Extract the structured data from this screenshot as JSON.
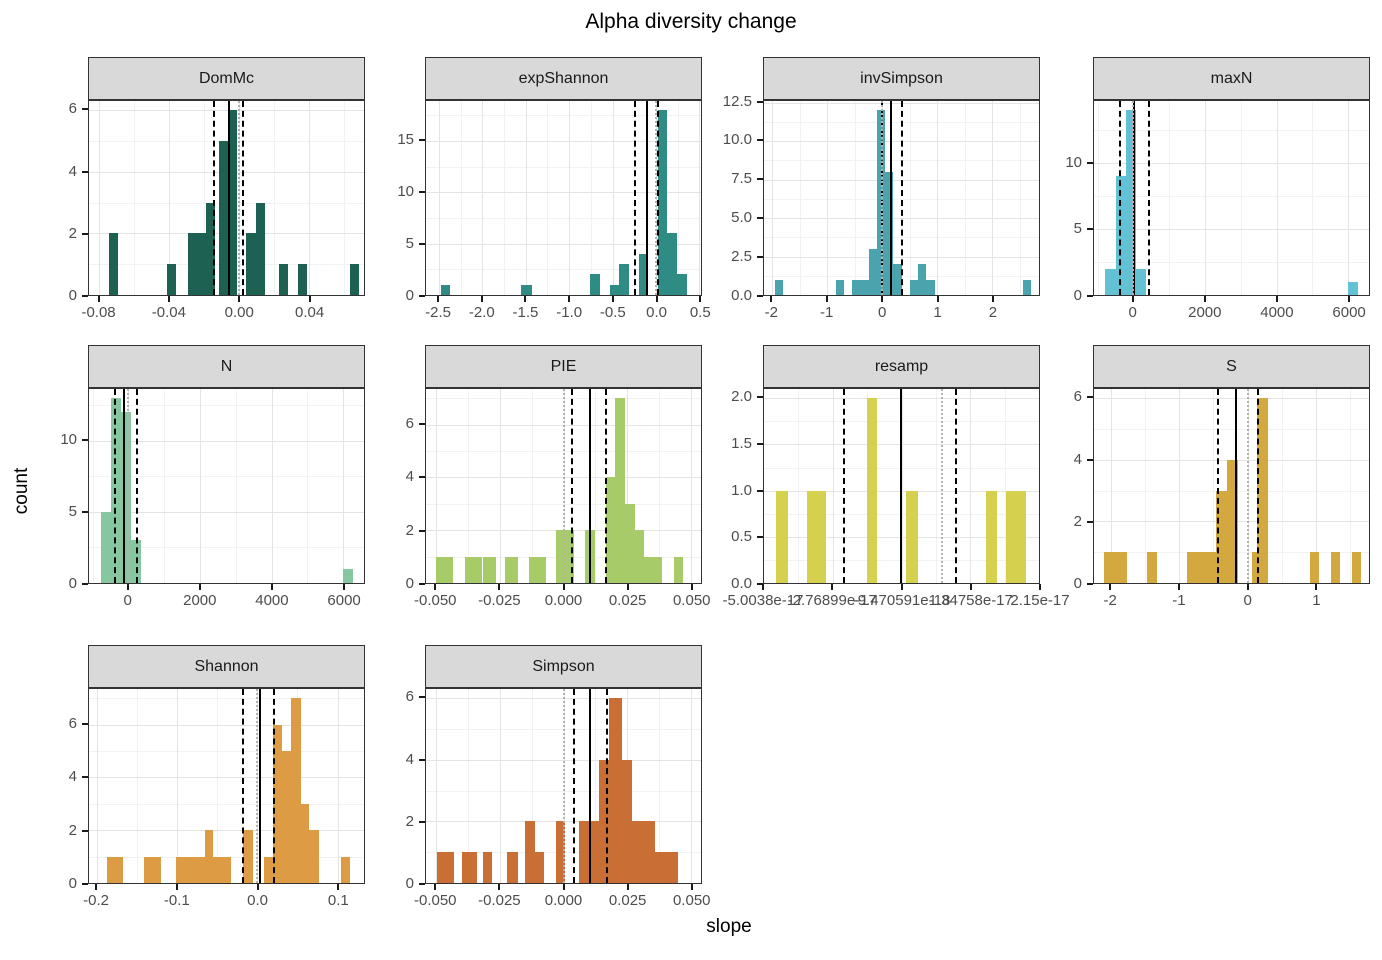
{
  "title": "Alpha diversity change",
  "x_axis_label": "slope",
  "y_axis_label": "count",
  "styles": {
    "strip_bg": "#d9d9d9",
    "panel_bg": "#ffffff",
    "grid_major": "#e4e4e4",
    "grid_minor": "#f2f2f2",
    "mean_line": "#000000",
    "ci_line": "#000000",
    "zero_ref_line": "#b3b3b3",
    "tick_text": "#4d4d4d"
  },
  "chart_data": [
    {
      "type": "bar",
      "facet": "DomMc",
      "color": "#1d6152",
      "row": 1,
      "col": 1,
      "xlim": [
        -0.086,
        0.0715
      ],
      "ylim": [
        0,
        6.3
      ],
      "xticks": [
        {
          "v": -0.08,
          "t": "-0.08"
        },
        {
          "v": -0.04,
          "t": "-0.04"
        },
        {
          "v": 0.0,
          "t": "0.00"
        },
        {
          "v": 0.04,
          "t": "0.04"
        }
      ],
      "yticks": [
        {
          "v": 0,
          "t": "0"
        },
        {
          "v": 2,
          "t": "2"
        },
        {
          "v": 4,
          "t": "4"
        },
        {
          "v": 6,
          "t": "6"
        }
      ],
      "bars": [
        {
          "x0": -0.0746,
          "x1": -0.0694,
          "n": 2
        },
        {
          "x0": -0.0412,
          "x1": -0.036,
          "n": 1
        },
        {
          "x0": -0.0292,
          "x1": -0.024,
          "n": 2
        },
        {
          "x0": -0.024,
          "x1": -0.0188,
          "n": 2
        },
        {
          "x0": -0.0188,
          "x1": -0.0136,
          "n": 3
        },
        {
          "x0": -0.0115,
          "x1": -0.0063,
          "n": 5
        },
        {
          "x0": -0.0063,
          "x1": -0.001,
          "n": 6
        },
        {
          "x0": 0.0042,
          "x1": 0.0095,
          "n": 2
        },
        {
          "x0": 0.0095,
          "x1": 0.0147,
          "n": 3
        },
        {
          "x0": 0.023,
          "x1": 0.0282,
          "n": 1
        },
        {
          "x0": 0.0339,
          "x1": 0.0391,
          "n": 1
        },
        {
          "x0": 0.0632,
          "x1": 0.0684,
          "n": 1
        }
      ],
      "vlines": {
        "solid": -0.006,
        "dashed": [
          -0.0144,
          0.0023
        ],
        "dotted": 0
      }
    },
    {
      "type": "bar",
      "facet": "expShannon",
      "color": "#2e8c85",
      "row": 1,
      "col": 2,
      "xlim": [
        -2.65,
        0.52
      ],
      "ylim": [
        0,
        18.9
      ],
      "xticks": [
        {
          "v": -2.5,
          "t": "-2.5"
        },
        {
          "v": -2.0,
          "t": "-2.0"
        },
        {
          "v": -1.5,
          "t": "-1.5"
        },
        {
          "v": -1.0,
          "t": "-1.0"
        },
        {
          "v": -0.5,
          "t": "-0.5"
        },
        {
          "v": 0.0,
          "t": "0.0"
        },
        {
          "v": 0.5,
          "t": "0.5"
        }
      ],
      "yticks": [
        {
          "v": 0,
          "t": "0"
        },
        {
          "v": 5,
          "t": "5"
        },
        {
          "v": 10,
          "t": "10"
        },
        {
          "v": 15,
          "t": "15"
        }
      ],
      "bars": [
        {
          "x0": -2.48,
          "x1": -2.37,
          "n": 1
        },
        {
          "x0": -1.55,
          "x1": -1.43,
          "n": 1
        },
        {
          "x0": -0.76,
          "x1": -0.64,
          "n": 2
        },
        {
          "x0": -0.53,
          "x1": -0.42,
          "n": 1
        },
        {
          "x0": -0.42,
          "x1": -0.31,
          "n": 3
        },
        {
          "x0": -0.2,
          "x1": -0.09,
          "n": 4
        },
        {
          "x0": 0.02,
          "x1": 0.13,
          "n": 18
        },
        {
          "x0": 0.13,
          "x1": 0.245,
          "n": 6
        },
        {
          "x0": 0.245,
          "x1": 0.36,
          "n": 2
        }
      ],
      "vlines": {
        "solid": -0.106,
        "dashed": [
          -0.237,
          0.03
        ],
        "dotted": 0
      }
    },
    {
      "type": "bar",
      "facet": "invSimpson",
      "color": "#4aa3ad",
      "row": 1,
      "col": 3,
      "xlim": [
        -2.15,
        2.85
      ],
      "ylim": [
        0,
        12.6
      ],
      "xticks": [
        {
          "v": -2,
          "t": "-2"
        },
        {
          "v": -1,
          "t": "-1"
        },
        {
          "v": 0,
          "t": "0"
        },
        {
          "v": 1,
          "t": "1"
        },
        {
          "v": 2,
          "t": "2"
        }
      ],
      "yticks": [
        {
          "v": 0,
          "t": "0.0"
        },
        {
          "v": 2.5,
          "t": "2.5"
        },
        {
          "v": 5,
          "t": "5.0"
        },
        {
          "v": 7.5,
          "t": "7.5"
        },
        {
          "v": 10,
          "t": "10.0"
        },
        {
          "v": 12.5,
          "t": "12.5"
        }
      ],
      "bars": [
        {
          "x0": -1.95,
          "x1": -1.8,
          "n": 1
        },
        {
          "x0": -0.85,
          "x1": -0.7,
          "n": 1
        },
        {
          "x0": -0.55,
          "x1": -0.4,
          "n": 1
        },
        {
          "x0": -0.4,
          "x1": -0.25,
          "n": 1
        },
        {
          "x0": -0.25,
          "x1": -0.1,
          "n": 3
        },
        {
          "x0": -0.1,
          "x1": 0.05,
          "n": 12
        },
        {
          "x0": 0.05,
          "x1": 0.2,
          "n": 8
        },
        {
          "x0": 0.2,
          "x1": 0.35,
          "n": 2
        },
        {
          "x0": 0.5,
          "x1": 0.65,
          "n": 1
        },
        {
          "x0": 0.65,
          "x1": 0.8,
          "n": 2
        },
        {
          "x0": 0.8,
          "x1": 0.95,
          "n": 1
        },
        {
          "x0": 2.55,
          "x1": 2.7,
          "n": 1
        }
      ],
      "vlines": {
        "solid": 0.15,
        "dashed": [
          0.0,
          0.35
        ],
        "dotted": 0
      }
    },
    {
      "type": "bar",
      "facet": "maxN",
      "color": "#62c1d2",
      "row": 1,
      "col": 4,
      "xlim": [
        -1100,
        6580
      ],
      "ylim": [
        0,
        14.7
      ],
      "xticks": [
        {
          "v": 0,
          "t": "0"
        },
        {
          "v": 2000,
          "t": "2000"
        },
        {
          "v": 4000,
          "t": "4000"
        },
        {
          "v": 6000,
          "t": "6000"
        }
      ],
      "yticks": [
        {
          "v": 0,
          "t": "0"
        },
        {
          "v": 5,
          "t": "5"
        },
        {
          "v": 10,
          "t": "10"
        }
      ],
      "bars": [
        {
          "x0": -780,
          "x1": -495,
          "n": 2
        },
        {
          "x0": -495,
          "x1": -210,
          "n": 9
        },
        {
          "x0": -210,
          "x1": 75,
          "n": 14
        },
        {
          "x0": 75,
          "x1": 360,
          "n": 2
        },
        {
          "x0": 5985,
          "x1": 6270,
          "n": 1
        }
      ],
      "vlines": {
        "solid": 28,
        "dashed": [
          -370,
          436
        ],
        "dotted": 0
      }
    },
    {
      "type": "bar",
      "facet": "N",
      "color": "#87c79f",
      "row": 2,
      "col": 1,
      "xlim": [
        -1100,
        6580
      ],
      "ylim": [
        0,
        13.65
      ],
      "xticks": [
        {
          "v": 0,
          "t": "0"
        },
        {
          "v": 2000,
          "t": "2000"
        },
        {
          "v": 4000,
          "t": "4000"
        },
        {
          "v": 6000,
          "t": "6000"
        }
      ],
      "yticks": [
        {
          "v": 0,
          "t": "0"
        },
        {
          "v": 5,
          "t": "5"
        },
        {
          "v": 10,
          "t": "10"
        }
      ],
      "bars": [
        {
          "x0": -770,
          "x1": -490,
          "n": 5
        },
        {
          "x0": -490,
          "x1": -210,
          "n": 13
        },
        {
          "x0": -210,
          "x1": 70,
          "n": 12
        },
        {
          "x0": 70,
          "x1": 350,
          "n": 3
        },
        {
          "x0": 5990,
          "x1": 6275,
          "n": 1
        }
      ],
      "vlines": {
        "solid": -112,
        "dashed": [
          -372,
          232
        ],
        "dotted": 0
      }
    },
    {
      "type": "bar",
      "facet": "PIE",
      "color": "#a6cb68",
      "row": 2,
      "col": 2,
      "xlim": [
        -0.054,
        0.054
      ],
      "ylim": [
        0,
        7.35
      ],
      "xticks": [
        {
          "v": -0.05,
          "t": "-0.050"
        },
        {
          "v": -0.025,
          "t": "-0.025"
        },
        {
          "v": 0.0,
          "t": "0.000"
        },
        {
          "v": 0.025,
          "t": "0.025"
        },
        {
          "v": 0.05,
          "t": "0.050"
        }
      ],
      "yticks": [
        {
          "v": 0,
          "t": "0"
        },
        {
          "v": 2,
          "t": "2"
        },
        {
          "v": 4,
          "t": "4"
        },
        {
          "v": 6,
          "t": "6"
        }
      ],
      "bars": [
        {
          "x0": -0.05,
          "x1": -0.0435,
          "n": 1
        },
        {
          "x0": -0.0385,
          "x1": -0.032,
          "n": 1
        },
        {
          "x0": -0.0315,
          "x1": -0.0265,
          "n": 1
        },
        {
          "x0": -0.023,
          "x1": -0.018,
          "n": 1
        },
        {
          "x0": -0.0135,
          "x1": -0.0067,
          "n": 1
        },
        {
          "x0": -0.003,
          "x1": 0.004,
          "n": 2
        },
        {
          "x0": 0.0085,
          "x1": 0.0122,
          "n": 2
        },
        {
          "x0": 0.0165,
          "x1": 0.0202,
          "n": 4
        },
        {
          "x0": 0.0202,
          "x1": 0.0241,
          "n": 7
        },
        {
          "x0": 0.0241,
          "x1": 0.0279,
          "n": 3
        },
        {
          "x0": 0.0279,
          "x1": 0.0315,
          "n": 2
        },
        {
          "x0": 0.0315,
          "x1": 0.0387,
          "n": 1
        },
        {
          "x0": 0.0433,
          "x1": 0.0468,
          "n": 1
        }
      ],
      "vlines": {
        "solid": 0.0104,
        "dashed": [
          0.0035,
          0.0165
        ],
        "dotted": 0
      }
    },
    {
      "type": "bar",
      "facet": "resamp",
      "color": "#d6d04f",
      "row": 2,
      "col": 3,
      "xlim": [
        0,
        1
      ],
      "ylim": [
        0,
        2.1
      ],
      "xticks": [
        {
          "v": 0.0,
          "t": "-5.0038e-17"
        },
        {
          "v": 0.25,
          "t": "-2.76899e-17"
        },
        {
          "v": 0.5,
          "t": "-9.470591e-18"
        },
        {
          "v": 0.75,
          "t": "1.34758e-17"
        },
        {
          "v": 1.0,
          "t": "2.15e-17"
        }
      ],
      "yticks": [
        {
          "v": 0,
          "t": "0.0"
        },
        {
          "v": 0.5,
          "t": "0.5"
        },
        {
          "v": 1.0,
          "t": "1.0"
        },
        {
          "v": 1.5,
          "t": "1.5"
        },
        {
          "v": 2.0,
          "t": "2.0"
        }
      ],
      "bars": [
        {
          "x0": 0.042,
          "x1": 0.087,
          "n": 1
        },
        {
          "x0": 0.156,
          "x1": 0.225,
          "n": 1
        },
        {
          "x0": 0.375,
          "x1": 0.412,
          "n": 2
        },
        {
          "x0": 0.515,
          "x1": 0.56,
          "n": 1
        },
        {
          "x0": 0.806,
          "x1": 0.848,
          "n": 1
        },
        {
          "x0": 0.879,
          "x1": 0.952,
          "n": 1
        }
      ],
      "vlines": {
        "solid": 0.499,
        "dashed": [
          0.291,
          0.697
        ],
        "dotted": 0.648
      }
    },
    {
      "type": "bar",
      "facet": "S",
      "color": "#d3a93f",
      "row": 2,
      "col": 4,
      "xlim": [
        -2.25,
        1.78
      ],
      "ylim": [
        0,
        6.3
      ],
      "xticks": [
        {
          "v": -2,
          "t": "-2"
        },
        {
          "v": -1,
          "t": "-1"
        },
        {
          "v": 0,
          "t": "0"
        },
        {
          "v": 1,
          "t": "1"
        }
      ],
      "yticks": [
        {
          "v": 0,
          "t": "0"
        },
        {
          "v": 2,
          "t": "2"
        },
        {
          "v": 4,
          "t": "4"
        },
        {
          "v": 6,
          "t": "6"
        }
      ],
      "bars": [
        {
          "x0": -2.1,
          "x1": -1.77,
          "n": 1
        },
        {
          "x0": -1.48,
          "x1": -1.32,
          "n": 1
        },
        {
          "x0": -0.88,
          "x1": -0.46,
          "n": 1
        },
        {
          "x0": -0.46,
          "x1": -0.3,
          "n": 3
        },
        {
          "x0": -0.3,
          "x1": -0.14,
          "n": 4
        },
        {
          "x0": 0.06,
          "x1": 0.14,
          "n": 1
        },
        {
          "x0": 0.14,
          "x1": 0.3,
          "n": 6
        },
        {
          "x0": 0.92,
          "x1": 1.05,
          "n": 1
        },
        {
          "x0": 1.23,
          "x1": 1.36,
          "n": 1
        },
        {
          "x0": 1.53,
          "x1": 1.66,
          "n": 1
        }
      ],
      "vlines": {
        "solid": -0.17,
        "dashed": [
          -0.44,
          0.155
        ],
        "dotted": 0
      }
    },
    {
      "type": "bar",
      "facet": "Shannon",
      "color": "#dd9b43",
      "row": 3,
      "col": 1,
      "xlim": [
        -0.21,
        0.133
      ],
      "ylim": [
        0,
        7.35
      ],
      "xticks": [
        {
          "v": -0.2,
          "t": "-0.2"
        },
        {
          "v": -0.1,
          "t": "-0.1"
        },
        {
          "v": 0.0,
          "t": "0.0"
        },
        {
          "v": 0.1,
          "t": "0.1"
        }
      ],
      "yticks": [
        {
          "v": 0,
          "t": "0"
        },
        {
          "v": 2,
          "t": "2"
        },
        {
          "v": 4,
          "t": "4"
        },
        {
          "v": 6,
          "t": "6"
        }
      ],
      "bars": [
        {
          "x0": -0.188,
          "x1": -0.167,
          "n": 1
        },
        {
          "x0": -0.142,
          "x1": -0.12,
          "n": 1
        },
        {
          "x0": -0.102,
          "x1": -0.065,
          "n": 1
        },
        {
          "x0": -0.065,
          "x1": -0.055,
          "n": 2
        },
        {
          "x0": -0.055,
          "x1": -0.033,
          "n": 1
        },
        {
          "x0": -0.018,
          "x1": -0.006,
          "n": 2
        },
        {
          "x0": 0.008,
          "x1": 0.02,
          "n": 1
        },
        {
          "x0": 0.02,
          "x1": 0.031,
          "n": 6
        },
        {
          "x0": 0.031,
          "x1": 0.042,
          "n": 5
        },
        {
          "x0": 0.042,
          "x1": 0.054,
          "n": 7
        },
        {
          "x0": 0.054,
          "x1": 0.065,
          "n": 3
        },
        {
          "x0": 0.065,
          "x1": 0.077,
          "n": 2
        },
        {
          "x0": 0.104,
          "x1": 0.115,
          "n": 1
        }
      ],
      "vlines": {
        "solid": 0.003,
        "dashed": [
          -0.018,
          0.021
        ],
        "dotted": 0
      }
    },
    {
      "type": "bar",
      "facet": "Simpson",
      "color": "#c96e35",
      "row": 3,
      "col": 2,
      "xlim": [
        -0.054,
        0.054
      ],
      "ylim": [
        0,
        6.3
      ],
      "xticks": [
        {
          "v": -0.05,
          "t": "-0.050"
        },
        {
          "v": -0.025,
          "t": "-0.025"
        },
        {
          "v": 0.0,
          "t": "0.000"
        },
        {
          "v": 0.025,
          "t": "0.025"
        },
        {
          "v": 0.05,
          "t": "0.050"
        }
      ],
      "yticks": [
        {
          "v": 0,
          "t": "0"
        },
        {
          "v": 2,
          "t": "2"
        },
        {
          "v": 4,
          "t": "4"
        },
        {
          "v": 6,
          "t": "6"
        }
      ],
      "bars": [
        {
          "x0": -0.0495,
          "x1": -0.043,
          "n": 1
        },
        {
          "x0": -0.04,
          "x1": -0.034,
          "n": 1
        },
        {
          "x0": -0.0315,
          "x1": -0.028,
          "n": 1
        },
        {
          "x0": -0.022,
          "x1": -0.018,
          "n": 1
        },
        {
          "x0": -0.015,
          "x1": -0.011,
          "n": 2
        },
        {
          "x0": -0.011,
          "x1": -0.0075,
          "n": 1
        },
        {
          "x0": -0.003,
          "x1": 0.0005,
          "n": 2
        },
        {
          "x0": 0.006,
          "x1": 0.01,
          "n": 2
        },
        {
          "x0": 0.01,
          "x1": 0.014,
          "n": 2
        },
        {
          "x0": 0.014,
          "x1": 0.018,
          "n": 4
        },
        {
          "x0": 0.018,
          "x1": 0.023,
          "n": 6
        },
        {
          "x0": 0.023,
          "x1": 0.027,
          "n": 4
        },
        {
          "x0": 0.027,
          "x1": 0.036,
          "n": 2
        },
        {
          "x0": 0.036,
          "x1": 0.045,
          "n": 1
        }
      ],
      "vlines": {
        "solid": 0.0105,
        "dashed": [
          0.004,
          0.017
        ],
        "dotted": 0
      }
    }
  ]
}
